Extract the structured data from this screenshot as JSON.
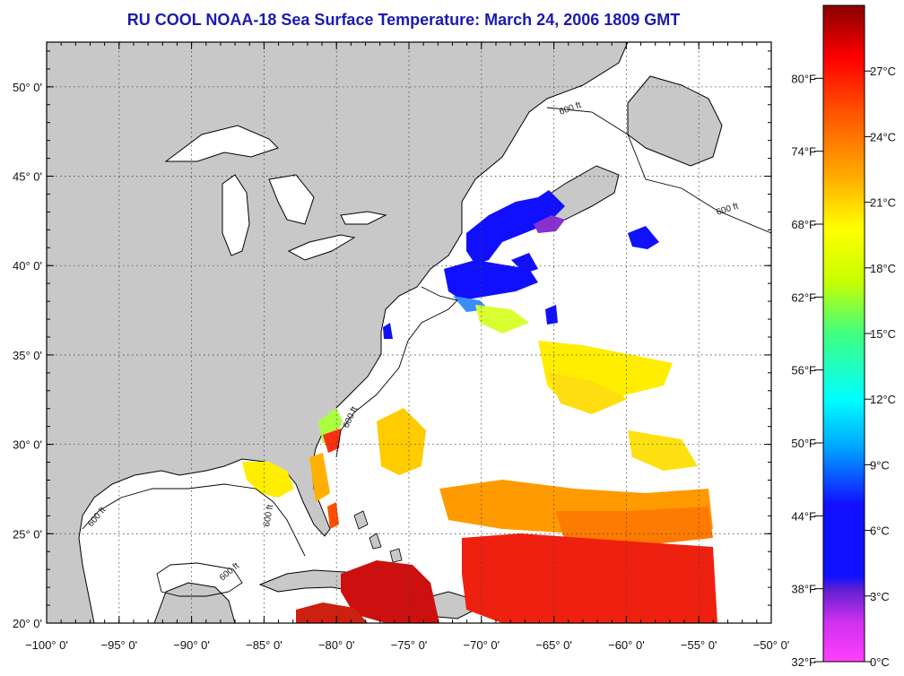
{
  "title": "RU COOL  NOAA-18  Sea Surface Temperature:  March 24, 2006 1809 GMT",
  "map": {
    "lon_range": [
      -100,
      -50
    ],
    "lat_range": [
      20,
      52.5
    ],
    "lon_ticks": [
      "−100° 0'",
      "−95° 0'",
      "−90° 0'",
      "−85° 0'",
      "−80° 0'",
      "−75° 0'",
      "−70° 0'",
      "−65° 0'",
      "−60° 0'",
      "−55° 0'",
      "−50° 0'"
    ],
    "lat_ticks": [
      "50° 0'",
      "45° 0'",
      "40° 0'",
      "35° 0'",
      "30° 0'",
      "25° 0'",
      "20° 0'"
    ],
    "isobath_label": "600 ft",
    "colors": {
      "land": "#c8c8c8",
      "ocean": "#ffffff",
      "cold": "#1a1ae6",
      "warm": "#cc1a1a"
    }
  },
  "colorbar": {
    "fahrenheit_labels": [
      "80°F",
      "74°F",
      "68°F",
      "62°F",
      "56°F",
      "50°F",
      "44°F",
      "38°F",
      "32°F"
    ],
    "celsius_labels": [
      "27°C",
      "24°C",
      "21°C",
      "18°C",
      "15°C",
      "12°C",
      "9°C",
      "6°C",
      "3°C",
      "0°C"
    ],
    "stops": [
      "#ff40ff",
      "#7020d0",
      "#1010ff",
      "#00aaff",
      "#00ffff",
      "#40ff80",
      "#c8ff00",
      "#ffff00",
      "#ffaa00",
      "#ff5000",
      "#ff0000",
      "#880000"
    ]
  }
}
